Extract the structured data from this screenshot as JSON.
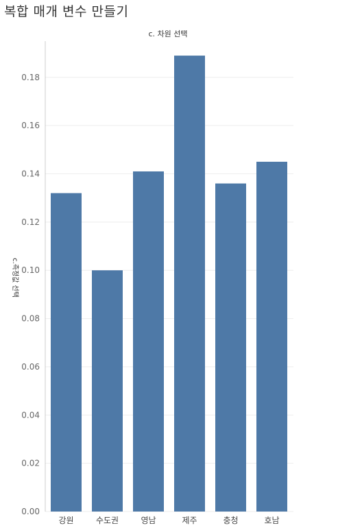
{
  "page": {
    "title": "복합 매개 변수 만들기"
  },
  "colors": {
    "bar": "#4e79a7",
    "grid": "#eeeeee",
    "axis": "#cccccc"
  },
  "chart_data": {
    "type": "bar",
    "column_header": "c. 차원 선택",
    "ylabel": "c.측정값 선택",
    "xlabel": "",
    "categories": [
      "강원",
      "수도권",
      "영남",
      "제주",
      "충청",
      "호남"
    ],
    "values": [
      0.132,
      0.1,
      0.141,
      0.189,
      0.136,
      0.145
    ],
    "ylim": [
      0,
      0.195
    ],
    "yticks": [
      0.0,
      0.02,
      0.04,
      0.06,
      0.08,
      0.1,
      0.12,
      0.14,
      0.16,
      0.18
    ],
    "ytick_labels": [
      "0.00",
      "0.02",
      "0.04",
      "0.06",
      "0.08",
      "0.10",
      "0.12",
      "0.14",
      "0.16",
      "0.18"
    ],
    "grid": true,
    "legend": "none"
  }
}
